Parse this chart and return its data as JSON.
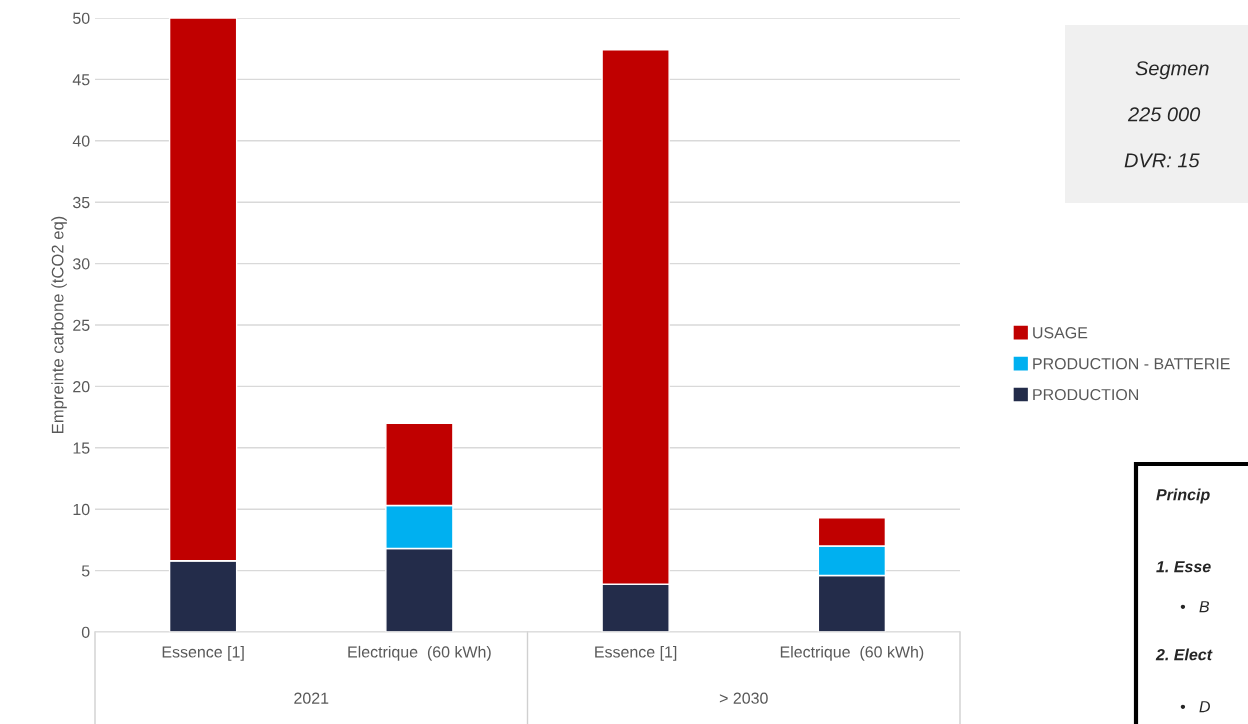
{
  "chart_data": {
    "type": "bar",
    "stacked": true,
    "ylabel": "Empreinte carbone (tCO2 eq)",
    "categories": [
      "Essence [1]",
      "Electrique  (60 kWh)",
      "Essence [1]",
      "Electrique  (60 kWh)"
    ],
    "series": [
      {
        "name": "PRODUCTION",
        "color": "#232c4a",
        "values": [
          5.8,
          6.8,
          3.9,
          4.6
        ]
      },
      {
        "name": "PRODUCTION - BATTERIE",
        "color": "#00b0f0",
        "values": [
          0,
          3.5,
          0,
          2.4
        ]
      },
      {
        "name": "USAGE",
        "color": "#c00000",
        "values": [
          44.2,
          6.7,
          43.5,
          2.3
        ]
      }
    ],
    "ylim": [
      0,
      50
    ],
    "yticks": [
      0,
      5,
      10,
      15,
      20,
      25,
      30,
      35,
      40,
      45,
      50
    ],
    "grid": "y",
    "legend": "right",
    "annotations": [
      "2021",
      "> 2030",
      "Segmen",
      "225 000",
      "DVR: 15",
      "Princip",
      "1. Esse",
      "•   B",
      "2. Elect",
      "•   D"
    ]
  }
}
